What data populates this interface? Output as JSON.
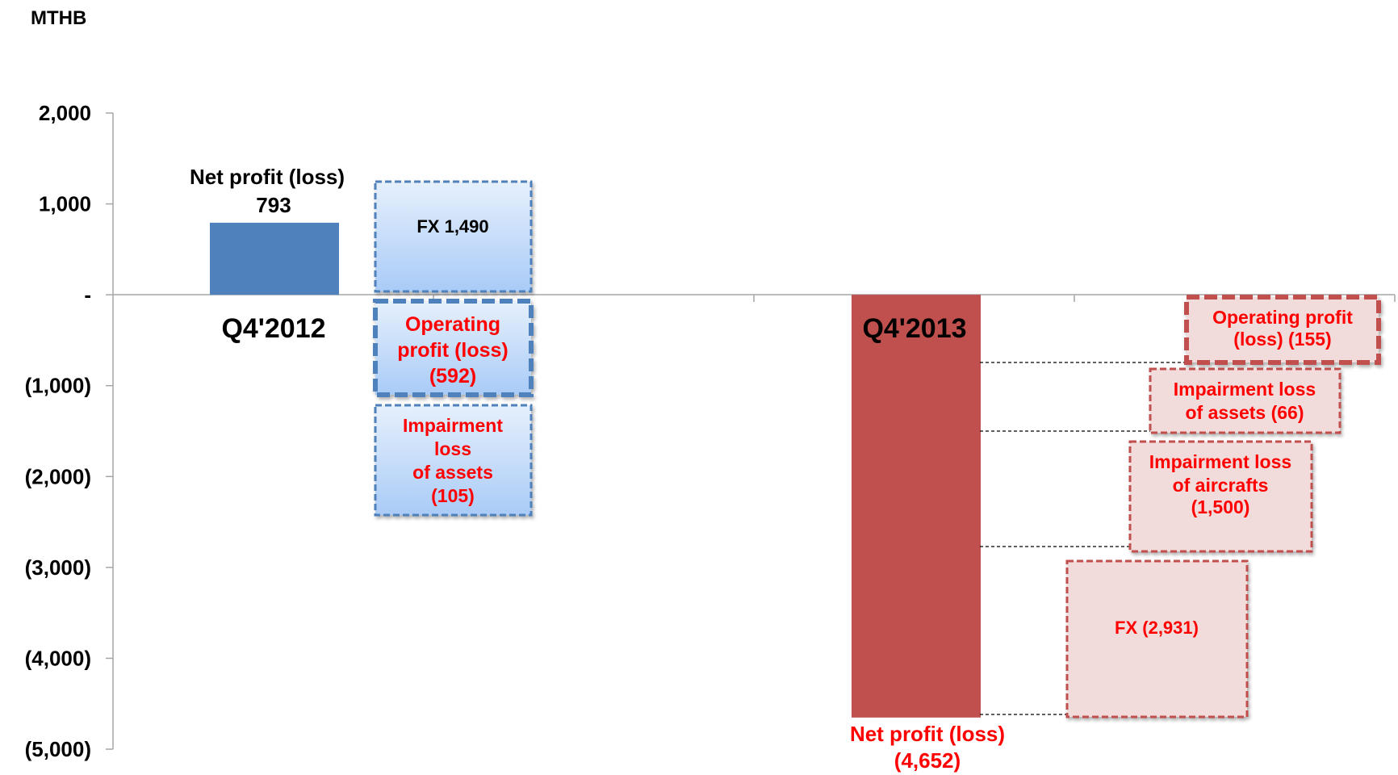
{
  "chart_data": {
    "type": "bar",
    "unit_label": "MTHB",
    "ylim": [
      -5000,
      2000
    ],
    "y_ticks": [
      {
        "value": 2000,
        "label": "2,000"
      },
      {
        "value": 1000,
        "label": "1,000"
      },
      {
        "value": 0,
        "label": "-"
      },
      {
        "value": -1000,
        "label": "(1,000)"
      },
      {
        "value": -2000,
        "label": "(2,000)"
      },
      {
        "value": -3000,
        "label": "(3,000)"
      },
      {
        "value": -4000,
        "label": "(4,000)"
      },
      {
        "value": -5000,
        "label": "(5,000)"
      }
    ],
    "grid": false,
    "periods": [
      {
        "id": "q4-2012",
        "name": "Q4'2012",
        "net_profit": {
          "label": "Net profit (loss)",
          "value": 793,
          "value_label": "793",
          "color": "#4f81bd"
        },
        "components": [
          {
            "label": "FX 1,490",
            "value": 1490,
            "style": "blue"
          },
          {
            "label": "Operating profit (loss) (592)",
            "value": -592,
            "style": "blue-emph"
          },
          {
            "label": "Impairment loss of assets (105)",
            "value": -105,
            "style": "blue"
          }
        ]
      },
      {
        "id": "q4-2013",
        "name": "Q4'2013",
        "net_profit": {
          "label": "Net profit (loss)",
          "value": -4652,
          "value_label": "(4,652)",
          "color": "#c0504d"
        },
        "components": [
          {
            "label": "Operating profit (loss) (155)",
            "value": -155,
            "style": "red-emph"
          },
          {
            "label": "Impairment loss of assets (66)",
            "value": -66,
            "style": "red"
          },
          {
            "label": "Impairment loss of aircrafts (1,500)",
            "value": -1500,
            "style": "red"
          },
          {
            "label": "FX (2,931)",
            "value": -2931,
            "style": "red"
          }
        ]
      }
    ]
  },
  "colors": {
    "axis": "#a6a6a6",
    "blue_bar": "#4f81bd",
    "red_bar": "#c0504d",
    "blue_border": "#4f81bd",
    "red_border": "#c0504d",
    "red_text": "#ff0000",
    "dark_text": "#000000"
  }
}
